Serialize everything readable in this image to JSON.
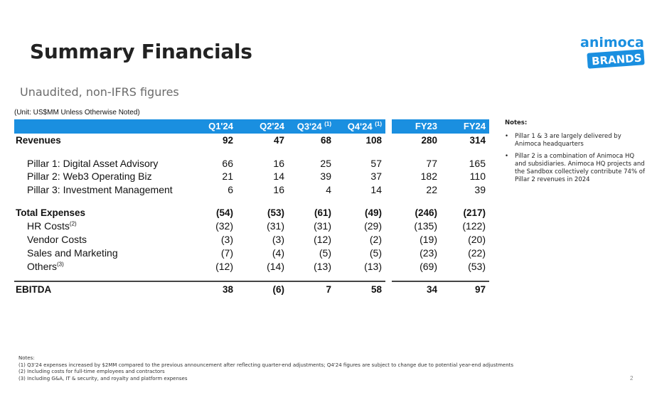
{
  "title": "Summary Financials",
  "subtitle": "Unaudited, non-IFRS figures",
  "unit_note": "(Unit: US$MM Unless Otherwise Noted)",
  "logo": {
    "line1": "animoca",
    "line2": "BRANDS"
  },
  "columns": [
    {
      "label": "Q1'24",
      "sup": ""
    },
    {
      "label": "Q2'24",
      "sup": ""
    },
    {
      "label": "Q3'24 ",
      "sup": "(1)"
    },
    {
      "label": "Q4'24 ",
      "sup": "(1)"
    },
    {
      "label": "FY23",
      "sup": ""
    },
    {
      "label": "FY24",
      "sup": ""
    }
  ],
  "rows": [
    {
      "label": "Revenues",
      "sup": "",
      "values": [
        "92",
        "47",
        "68",
        "108",
        "280",
        "314"
      ]
    },
    {
      "label": "Pillar 1: Digital Asset Advisory",
      "sup": "",
      "values": [
        "66",
        "16",
        "25",
        "57",
        "77",
        "165"
      ]
    },
    {
      "label": "Pillar 2: Web3 Operating Biz",
      "sup": "",
      "values": [
        "21",
        "14",
        "39",
        "37",
        "182",
        "110"
      ]
    },
    {
      "label": "Pillar 3: Investment Management",
      "sup": "",
      "values": [
        "6",
        "16",
        "4",
        "14",
        "22",
        "39"
      ]
    },
    {
      "label": "Total Expenses",
      "sup": "",
      "values": [
        "(54)",
        "(53)",
        "(61)",
        "(49)",
        "(246)",
        "(217)"
      ]
    },
    {
      "label": "HR Costs",
      "sup": "(2)",
      "values": [
        "(32)",
        "(31)",
        "(31)",
        "(29)",
        "(135)",
        "(122)"
      ]
    },
    {
      "label": "Vendor Costs",
      "sup": "",
      "values": [
        "(3)",
        "(3)",
        "(12)",
        "(2)",
        "(19)",
        "(20)"
      ]
    },
    {
      "label": "Sales and Marketing",
      "sup": "",
      "values": [
        "(7)",
        "(4)",
        "(5)",
        "(5)",
        "(23)",
        "(22)"
      ]
    },
    {
      "label": "Others",
      "sup": "(3)",
      "values": [
        "(12)",
        "(14)",
        "(13)",
        "(13)",
        "(69)",
        "(53)"
      ]
    },
    {
      "label": "EBITDA",
      "sup": "",
      "values": [
        "38",
        "(6)",
        "7",
        "58",
        "34",
        "97"
      ]
    }
  ],
  "notes": {
    "title": "Notes:",
    "bullets": [
      "Pillar 1 & 3 are largely delivered by Animoca headquarters",
      "Pillar 2 is a combination of Animoca HQ and subsidiaries. Animoca HQ projects and the Sandbox collectively contribute 74% of Pillar 2 revenues in 2024"
    ]
  },
  "footnotes": [
    "Notes:",
    "(1) Q3'24 expenses increased by $2MM compared to the previous announcement after reflecting quarter-end adjustments; Q4'24 figures are subject to change due to potential year-end adjustments",
    "(2) Including costs for full-time employees and contractors",
    "(3) Including G&A, IT & security, and royalty and platform expenses"
  ],
  "page_number": "2",
  "colors": {
    "header_band": "#1a8fe0",
    "logo": "#1a8fe0"
  }
}
